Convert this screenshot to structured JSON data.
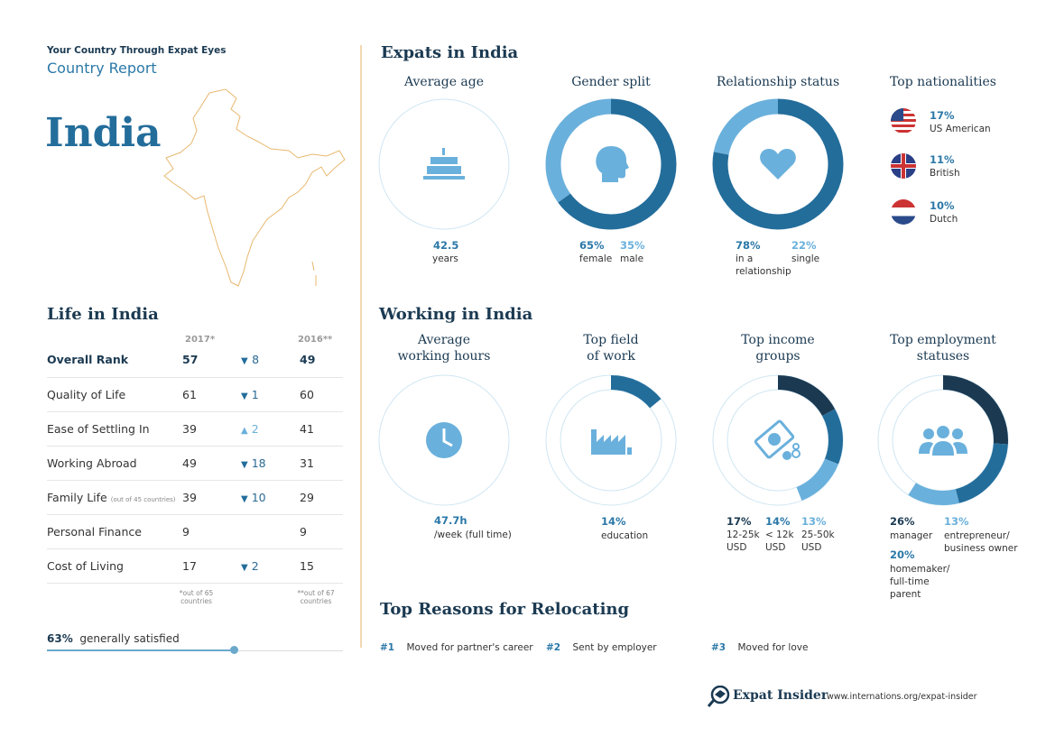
{
  "header": {
    "eyebrow": "Your Country Through Expat Eyes",
    "subtitle": "Country Report",
    "country": "India"
  },
  "life": {
    "title": "Life in India",
    "col_2017": "2017*",
    "col_2016": "2016**",
    "rows": [
      {
        "label": "Overall Rank",
        "note": "",
        "y2017": "57",
        "dir": "down",
        "change": "8",
        "y2016": "49"
      },
      {
        "label": "Quality of Life",
        "note": "",
        "y2017": "61",
        "dir": "down",
        "change": "1",
        "y2016": "60"
      },
      {
        "label": "Ease of Settling In",
        "note": "",
        "y2017": "39",
        "dir": "up",
        "change": "2",
        "y2016": "41"
      },
      {
        "label": "Working Abroad",
        "note": "",
        "y2017": "49",
        "dir": "down",
        "change": "18",
        "y2016": "31"
      },
      {
        "label": "Family Life",
        "note": "(out of 45 countries)",
        "y2017": "39",
        "dir": "down",
        "change": "10",
        "y2016": "29"
      },
      {
        "label": "Personal Finance",
        "note": "",
        "y2017": "9",
        "dir": "",
        "change": "",
        "y2016": "9"
      },
      {
        "label": "Cost of Living",
        "note": "",
        "y2017": "17",
        "dir": "down",
        "change": "2",
        "y2016": "15"
      }
    ],
    "foot_2017": "*out of 65 countries",
    "foot_2016": "**out of 67 countries",
    "satisfied_pct": "63%",
    "satisfied_label": "generally satisfied",
    "satisfied_value": 63
  },
  "expats": {
    "title": "Expats in India",
    "age": {
      "title": "Average age",
      "value": "42.5",
      "unit": "years"
    },
    "gender": {
      "title": "Gender split",
      "female_pct": "65%",
      "female": "female",
      "male_pct": "35%",
      "male": "male",
      "female_value": 65,
      "male_value": 35
    },
    "relationship": {
      "title": "Relationship status",
      "rel_pct": "78%",
      "rel": "in a relationship",
      "single_pct": "22%",
      "single": "single",
      "rel_value": 78,
      "single_value": 22
    },
    "nationalities": {
      "title": "Top nationalities",
      "items": [
        {
          "pct": "17%",
          "name": "US American"
        },
        {
          "pct": "11%",
          "name": "British"
        },
        {
          "pct": "10%",
          "name": "Dutch"
        }
      ]
    }
  },
  "working": {
    "title": "Working in India",
    "hours": {
      "title1": "Average",
      "title2": "working hours",
      "value": "47.7h",
      "unit": "/week (full time)"
    },
    "field": {
      "title1": "Top field",
      "title2": "of work",
      "pct": "14%",
      "name": "education",
      "value": 14
    },
    "income": {
      "title1": "Top income",
      "title2": "groups",
      "items": [
        {
          "pct": "17%",
          "l1": "12-25k",
          "l2": "USD",
          "value": 17
        },
        {
          "pct": "14%",
          "l1": "< 12k",
          "l2": "USD",
          "value": 14
        },
        {
          "pct": "13%",
          "l1": "25-50k",
          "l2": "USD",
          "value": 13
        }
      ]
    },
    "employment": {
      "title1": "Top employment",
      "title2": "statuses",
      "items": [
        {
          "pct": "26%",
          "name": "manager",
          "value": 26
        },
        {
          "pct": "20%",
          "name": "homemaker/ full-time parent",
          "value": 20
        },
        {
          "pct": "13%",
          "name": "entrepreneur/ business owner",
          "value": 13
        }
      ]
    }
  },
  "reasons": {
    "title": "Top Reasons for Relocating",
    "items": [
      {
        "rank": "#1",
        "text": "Moved for partner's career"
      },
      {
        "rank": "#2",
        "text": "Sent by employer"
      },
      {
        "rank": "#3",
        "text": "Moved for love"
      }
    ]
  },
  "footer": {
    "brand": "Expat Insider",
    "url": "www.internations.org/expat-insider"
  },
  "colors": {
    "dark": "#1b3a52",
    "mid": "#236d9b",
    "light": "#6ab0dc",
    "divider": "#f0c88a"
  }
}
